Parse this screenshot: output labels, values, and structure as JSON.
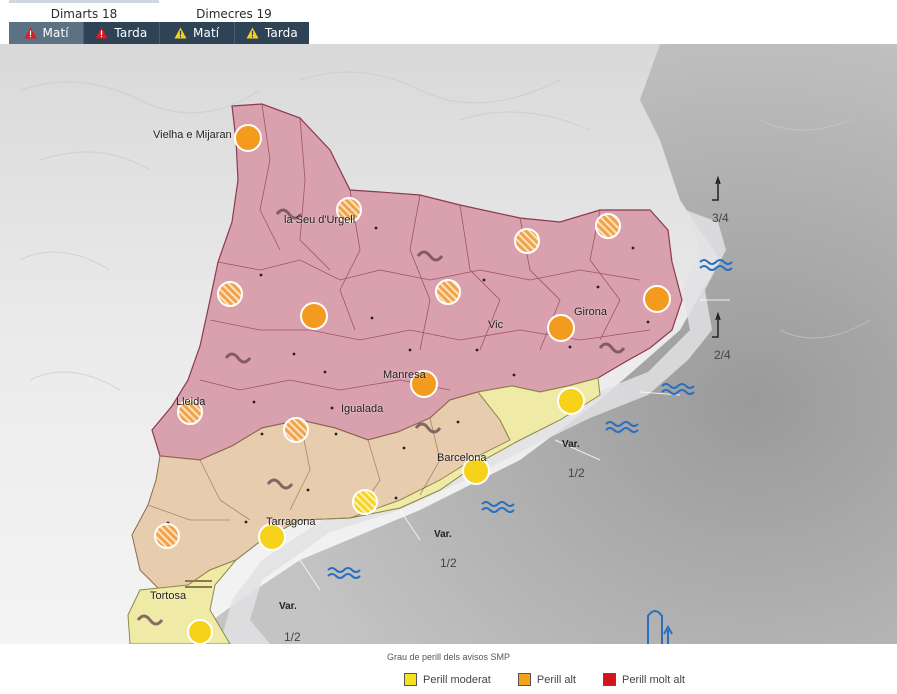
{
  "days": [
    {
      "label": "Dimarts 18",
      "active": true
    },
    {
      "label": "Dimecres 19",
      "active": false
    }
  ],
  "periods": [
    {
      "label": "Matí",
      "warning_color": "#e2191f",
      "selected": true
    },
    {
      "label": "Tarda",
      "warning_color": "#e2191f",
      "selected": false
    },
    {
      "label": "Matí",
      "warning_color": "#f2d21c",
      "selected": false
    },
    {
      "label": "Tarda",
      "warning_color": "#f2d21c",
      "selected": false
    }
  ],
  "map": {
    "places": [
      {
        "name": "Vielha e Mijaran"
      },
      {
        "name": "la Seu d'Urgell"
      },
      {
        "name": "Vic"
      },
      {
        "name": "Girona"
      },
      {
        "name": "Manresa"
      },
      {
        "name": "Lleida"
      },
      {
        "name": "Igualada"
      },
      {
        "name": "Barcelona"
      },
      {
        "name": "Tarragona"
      },
      {
        "name": "Tortosa"
      }
    ],
    "sea_states": [
      {
        "text": "3/4"
      },
      {
        "text": "2/4"
      },
      {
        "text": "1/2"
      },
      {
        "text": "1/2"
      },
      {
        "text": "1/2"
      }
    ],
    "wind_labels": [
      {
        "text": "Var."
      },
      {
        "text": "Var."
      },
      {
        "text": "Var."
      }
    ],
    "zone_colors": {
      "molt_alt": "#d98c9c",
      "alt": "#e6c3a4",
      "moderat": "#efe9a6"
    },
    "icons": {
      "storm_orange": "#f29b1f",
      "storm_yellow": "#f7d21a",
      "rain": "#e8a44a",
      "waves": "#2a6fc0",
      "hail": "#6b4a52"
    }
  },
  "legend": {
    "title": "Grau de perill dels avisos SMP",
    "items": [
      {
        "label": "Perill moderat",
        "color": "#f7e11c"
      },
      {
        "label": "Perill alt",
        "color": "#f2a21c"
      },
      {
        "label": "Perill molt alt",
        "color": "#d4141c"
      }
    ]
  }
}
